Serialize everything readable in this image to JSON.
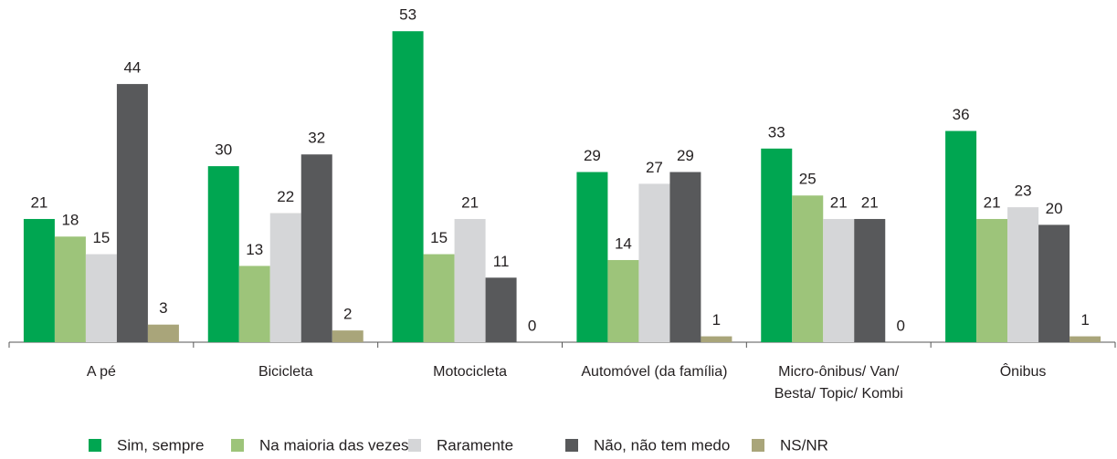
{
  "chart_data": {
    "type": "bar",
    "categories": [
      "A pé",
      "Bicicleta",
      "Motocicleta",
      "Automóvel (da família)",
      "Micro-ônibus/ Van/ Besta/ Topic/ Kombi",
      "Ônibus"
    ],
    "series": [
      {
        "name": "Sim, sempre",
        "color": "#00a651",
        "values": [
          21,
          30,
          53,
          29,
          33,
          36
        ]
      },
      {
        "name": "Na maioria das vezes",
        "color": "#9dc47a",
        "values": [
          18,
          13,
          15,
          14,
          25,
          21
        ]
      },
      {
        "name": "Raramente",
        "color": "#d5d6d8",
        "values": [
          15,
          22,
          21,
          27,
          21,
          23
        ]
      },
      {
        "name": "Não, não tem medo",
        "color": "#58595b",
        "values": [
          44,
          32,
          11,
          29,
          21,
          20
        ]
      },
      {
        "name": "NS/NR",
        "color": "#a9a57a",
        "values": [
          3,
          2,
          0,
          1,
          0,
          1
        ]
      }
    ],
    "legend": "bottom"
  }
}
